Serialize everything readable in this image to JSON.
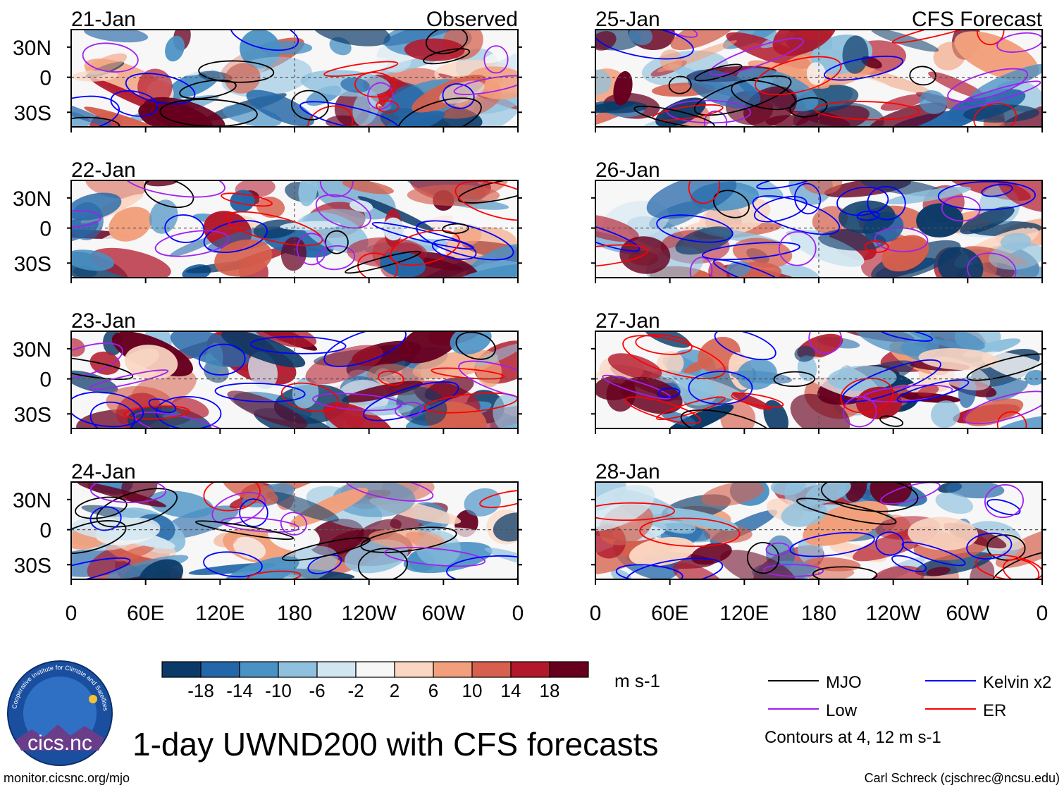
{
  "chart_data": {
    "type": "heatmap",
    "title": "1-day UWND200 with CFS forecasts",
    "units": "m s-1",
    "columns": [
      {
        "label": "Observed",
        "panels": [
          {
            "date": "21-Jan"
          },
          {
            "date": "22-Jan"
          },
          {
            "date": "23-Jan"
          },
          {
            "date": "24-Jan"
          }
        ]
      },
      {
        "label": "CFS Forecast",
        "panels": [
          {
            "date": "25-Jan"
          },
          {
            "date": "26-Jan"
          },
          {
            "date": "27-Jan"
          },
          {
            "date": "28-Jan"
          }
        ]
      }
    ],
    "x_ticks": [
      "0",
      "60E",
      "120E",
      "180",
      "120W",
      "60W",
      "0"
    ],
    "y_ticks": [
      "30N",
      "0",
      "30S"
    ],
    "colorbar": {
      "colors": [
        "#0b3a68",
        "#2467a8",
        "#4a91c4",
        "#8fc1de",
        "#d2e6f1",
        "#f7f7f7",
        "#fbd6c2",
        "#f2a07c",
        "#d6604d",
        "#b2182b",
        "#67001f"
      ],
      "labels": [
        "-18",
        "-14",
        "-10",
        "-6",
        "-2",
        "2",
        "6",
        "10",
        "14",
        "18"
      ]
    },
    "legend": [
      {
        "label": "MJO",
        "color": "#000000"
      },
      {
        "label": "Kelvin x2",
        "color": "#0000ff"
      },
      {
        "label": "Low",
        "color": "#a020f0"
      },
      {
        "label": "ER",
        "color": "#ff0000"
      }
    ],
    "contour_note": "Contours at 4, 12 m s-1"
  },
  "logo": {
    "text": "cics.nc",
    "ring_text": "Cooperative Institute for Climate and Satellites"
  },
  "footer": {
    "left": "monitor.cicsnc.org/mjo",
    "right": "Carl Schreck (cjschrec@ncsu.edu)"
  }
}
